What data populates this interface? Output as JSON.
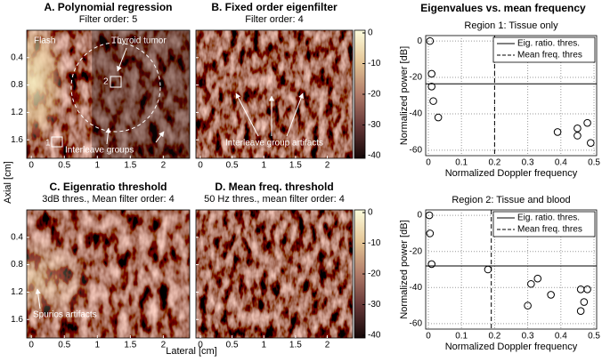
{
  "figure": {
    "x_label": "Lateral [cm]",
    "y_label": "Axial [cm]"
  },
  "panels": [
    {
      "title": "A. Polynomial regression",
      "subtitle": "Filter order: 5",
      "annotations": [
        "Flash",
        "Thyroid tumor",
        "2",
        "1",
        "Interleave groups"
      ]
    },
    {
      "title": "B. Fixed order eigenfilter",
      "subtitle": "Filter order: 4",
      "annotations": [
        "Interleave group artifacts"
      ]
    },
    {
      "title": "C. Eigenratio threshold",
      "subtitle": "3dB thres., Mean filter order: 4",
      "annotations": [
        "Spurios artifacts"
      ]
    },
    {
      "title": "D. Mean freq. threshold",
      "subtitle": "50 Hz thres., mean filter order: 4",
      "annotations": []
    }
  ],
  "image_axes": {
    "xlim": [
      -0.07,
      2.4
    ],
    "ylim": [
      0,
      1.87
    ],
    "xticks": [
      0,
      0.5,
      1,
      1.5,
      2
    ],
    "yticks": [
      0.4,
      0.8,
      1.2,
      1.6
    ]
  },
  "colorbar": {
    "lim": [
      -40,
      0
    ],
    "ticks": [
      0,
      -10,
      -20,
      -30,
      -40
    ]
  },
  "chart_data": [
    {
      "type": "scatter",
      "title": "Eigenvalues vs. mean frequency",
      "subtitle": "Region 1: Tissue only",
      "x_label": "Normalized Doppler frequency",
      "y_label": "Normalized power [dB]",
      "x": [
        0.005,
        0.01,
        0.01,
        0.015,
        0.03,
        0.39,
        0.45,
        0.45,
        0.48,
        0.49
      ],
      "y": [
        0,
        -18,
        -25,
        -33,
        -42,
        -50,
        -48,
        -52,
        -45,
        -56
      ],
      "color": "#000000",
      "xlim": [
        -0.008,
        0.508
      ],
      "ylim": [
        -63,
        3
      ],
      "xticks": [
        0,
        0.1,
        0.2,
        0.3,
        0.4,
        0.5
      ],
      "yticks": [
        0,
        -20,
        -40,
        -60
      ],
      "grid": true,
      "legend": "upper right",
      "thresholds": [
        {
          "name": "Eig. ratio. thres.",
          "axis": "y",
          "value": -23.5,
          "dash": false
        },
        {
          "name": "Mean freq. thres",
          "axis": "x",
          "value": 0.2,
          "dash": true
        }
      ]
    },
    {
      "type": "scatter",
      "subtitle": "Region 2: Tissue and blood",
      "x_label": "Normalized Doppler frequency",
      "y_label": "Normalized power [dB]",
      "x": [
        0.003,
        0.005,
        0.01,
        0.18,
        0.3,
        0.31,
        0.33,
        0.37,
        0.46,
        0.46,
        0.47,
        0.48
      ],
      "y": [
        0,
        -10,
        -27,
        -30,
        -50,
        -38,
        -35,
        -44,
        -41,
        -53,
        -48,
        -41
      ],
      "color": "#000000",
      "xlim": [
        -0.008,
        0.508
      ],
      "ylim": [
        -63,
        3
      ],
      "xticks": [
        0,
        0.1,
        0.2,
        0.3,
        0.4,
        0.5
      ],
      "yticks": [
        0,
        -20,
        -40,
        -60
      ],
      "grid": true,
      "legend": "upper right",
      "thresholds": [
        {
          "name": "Eig. ratio. thres.",
          "axis": "y",
          "value": -28,
          "dash": false
        },
        {
          "name": "Mean freq. thres",
          "axis": "x",
          "value": 0.19,
          "dash": true
        }
      ]
    }
  ]
}
